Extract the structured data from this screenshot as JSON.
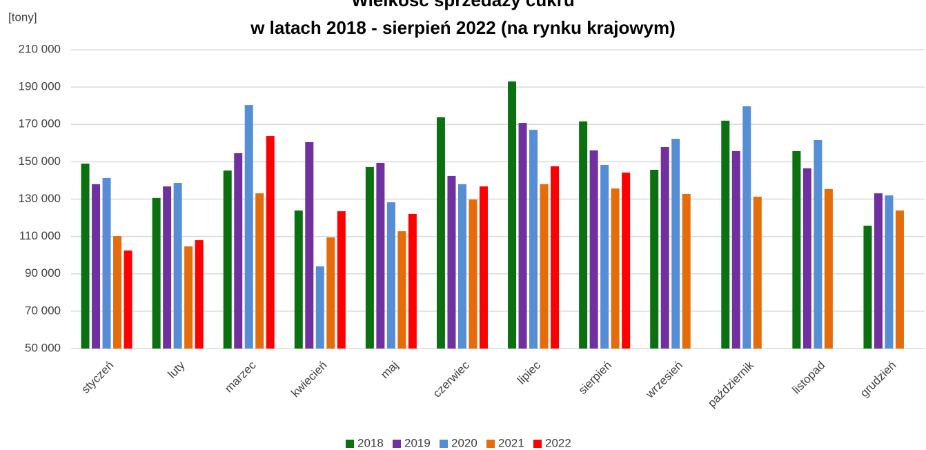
{
  "chart_data": {
    "type": "bar",
    "title": "Wielkość sprzedaży cukru",
    "subtitle": "w latach 2018 - sierpień 2022 (na rynku krajowym)",
    "y_label": "[tony]",
    "categories": [
      "styczeń",
      "luty",
      "marzec",
      "kwiecień",
      "maj",
      "czerwiec",
      "lipiec",
      "sierpień",
      "wrzesień",
      "październik",
      "listopad",
      "grudzień"
    ],
    "series": [
      {
        "name": "2018",
        "color": "#0a7010",
        "values": [
          149000,
          130600,
          145300,
          123900,
          147200,
          173800,
          193000,
          171600,
          145700,
          172000,
          155700,
          115800
        ]
      },
      {
        "name": "2019",
        "color": "#7030a0",
        "values": [
          138000,
          136800,
          154600,
          160500,
          149400,
          142400,
          170800,
          156100,
          157900,
          155700,
          146500,
          133100
        ]
      },
      {
        "name": "2020",
        "color": "#558ed5",
        "values": [
          141300,
          138700,
          180400,
          94000,
          128300,
          138000,
          167100,
          148300,
          162300,
          179700,
          161600,
          132000
        ]
      },
      {
        "name": "2021",
        "color": "#e46c0a",
        "values": [
          110200,
          104700,
          133100,
          109500,
          112800,
          129800,
          138000,
          135700,
          132800,
          131300,
          135400,
          123900
        ]
      },
      {
        "name": "2022",
        "color": "#ff0000",
        "values": [
          102500,
          108000,
          163800,
          123500,
          122100,
          136800,
          147600,
          144200,
          null,
          null,
          null,
          null
        ]
      }
    ],
    "ylim": [
      50000,
      210000
    ],
    "yticks": [
      {
        "value": 50000,
        "label": "50 000"
      },
      {
        "value": 70000,
        "label": "70 000"
      },
      {
        "value": 90000,
        "label": "90 000"
      },
      {
        "value": 110000,
        "label": "110 000"
      },
      {
        "value": 130000,
        "label": "130 000"
      },
      {
        "value": 150000,
        "label": "150 000"
      },
      {
        "value": 170000,
        "label": "170 000"
      },
      {
        "value": 190000,
        "label": "190 000"
      },
      {
        "value": 210000,
        "label": "210 000"
      }
    ],
    "grid": true,
    "legend": "bottom"
  }
}
